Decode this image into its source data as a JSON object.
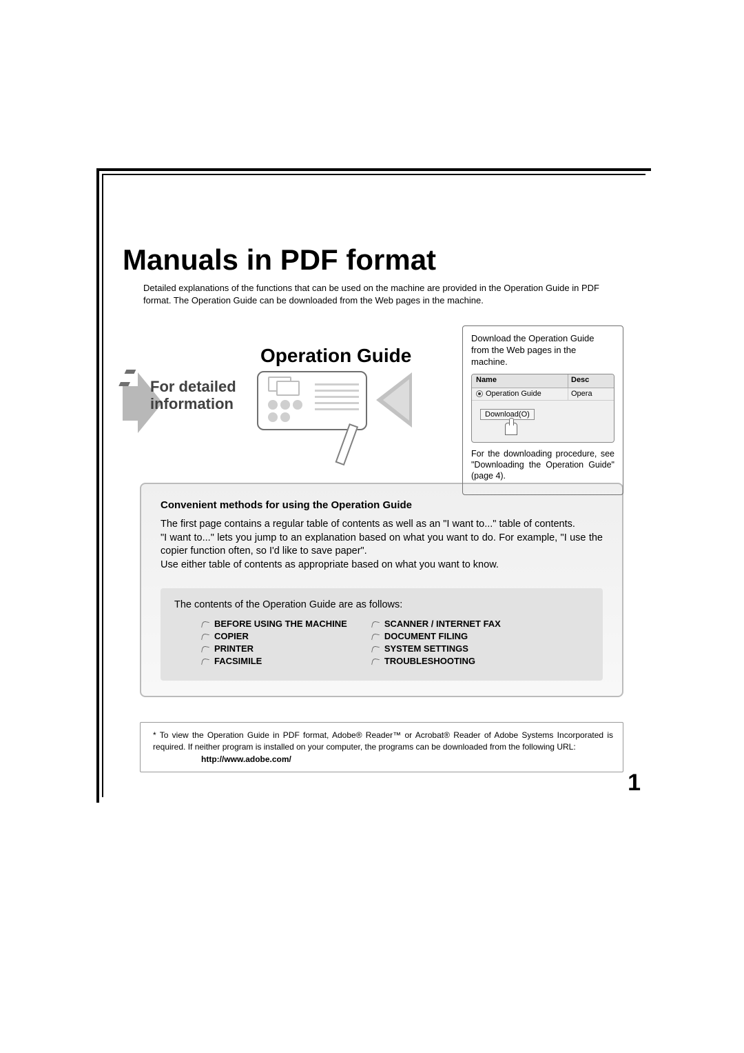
{
  "page": {
    "title": "Manuals in PDF format",
    "intro": "Detailed explanations of the functions that can be used on the machine are provided in the Operation Guide in PDF format. The Operation Guide can be downloaded from the Web pages in the machine.",
    "page_number": "1"
  },
  "middle": {
    "operation_guide_title": "Operation Guide",
    "for_detailed_line1": "For detailed",
    "for_detailed_line2": "information"
  },
  "download_box": {
    "intro": "Download the Operation Guide from the Web pages in the machine.",
    "header_name": "Name",
    "header_desc": "Desc",
    "row_name": "Operation Guide",
    "row_desc": "Opera",
    "button": "Download(O)",
    "note": "For the downloading procedure, see \"Downloading the Operation Guide\" (page 4)."
  },
  "card": {
    "heading": "Convenient methods for using the Operation Guide",
    "para1": "The first page contains a regular table of contents as well as an \"I want to...\" table of contents.",
    "para2": "\"I want to...\" lets you jump to an explanation based on what you want to do. For example, \"I use the copier function often, so I'd like to save paper\".",
    "para3": "Use either table of contents as appropriate based on what you want to know.",
    "inner_lead": "The contents of the Operation Guide are as follows:",
    "toc_left": [
      "BEFORE USING THE MACHINE",
      "COPIER",
      "PRINTER",
      "FACSIMILE"
    ],
    "toc_right": [
      "SCANNER / INTERNET FAX",
      "DOCUMENT FILING",
      "SYSTEM SETTINGS",
      "TROUBLESHOOTING"
    ]
  },
  "footnote": {
    "text": "* To view the Operation Guide in PDF format, Adobe® Reader™ or Acrobat® Reader of Adobe Systems Incorporated is required. If neither program is installed on your computer, the programs can be downloaded from the following URL:",
    "url": "http://www.adobe.com/"
  },
  "colors": {
    "frame": "#000000",
    "text": "#000000",
    "grey_arrow": "#c2c2c2",
    "card_bg": "#f1f1f1",
    "inner_bg": "#e2e2e2",
    "border_grey": "#bbbbbb"
  }
}
